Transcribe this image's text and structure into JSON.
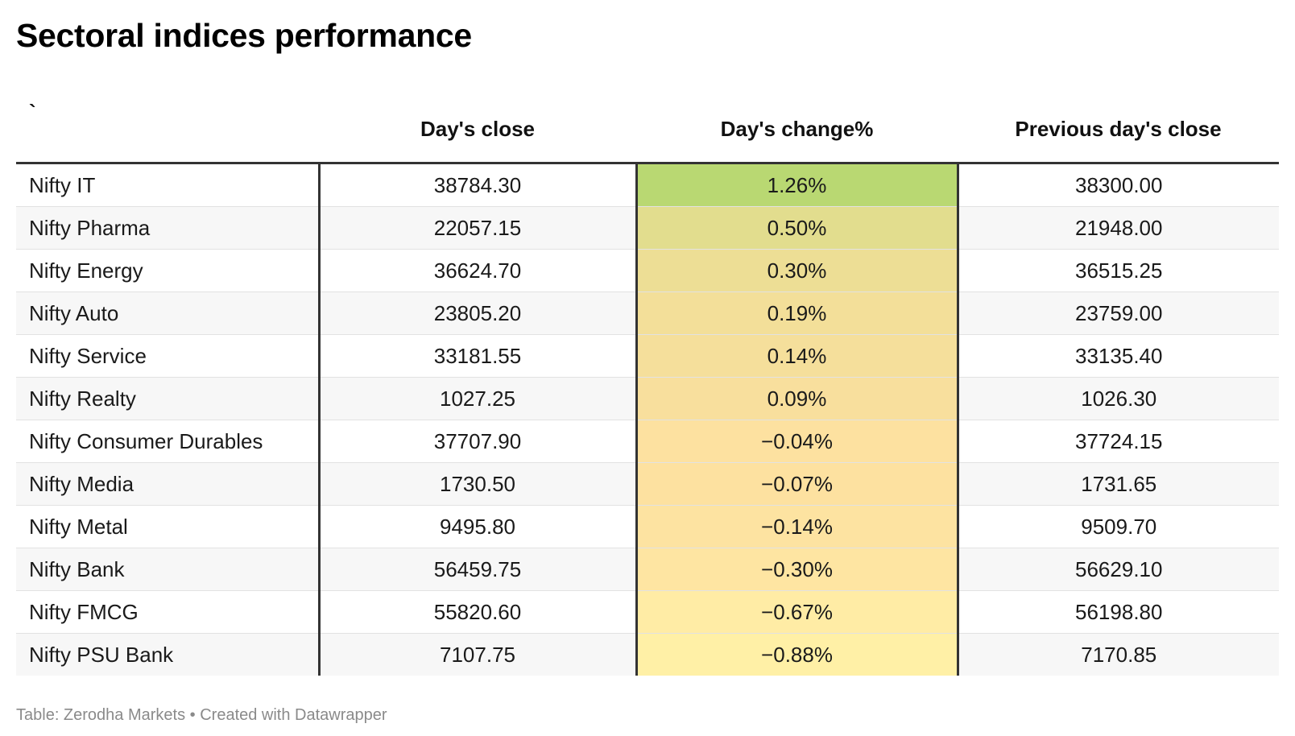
{
  "title": "Sectoral indices performance",
  "footer": "Table: Zerodha Markets • Created with Datawrapper",
  "chart_data": {
    "type": "table",
    "title": "Sectoral indices performance",
    "columns": [
      "`",
      "Day's close",
      "Day's change%",
      "Previous day's close"
    ],
    "rows": [
      {
        "name": "Nifty IT",
        "close": "38784.30",
        "change": "1.26%",
        "change_value": 1.26,
        "prev": "38300.00"
      },
      {
        "name": "Nifty Pharma",
        "close": "22057.15",
        "change": "0.50%",
        "change_value": 0.5,
        "prev": "21948.00"
      },
      {
        "name": "Nifty Energy",
        "close": "36624.70",
        "change": "0.30%",
        "change_value": 0.3,
        "prev": "36515.25"
      },
      {
        "name": "Nifty Auto",
        "close": "23805.20",
        "change": "0.19%",
        "change_value": 0.19,
        "prev": "23759.00"
      },
      {
        "name": "Nifty Service",
        "close": "33181.55",
        "change": "0.14%",
        "change_value": 0.14,
        "prev": "33135.40"
      },
      {
        "name": "Nifty Realty",
        "close": "1027.25",
        "change": "0.09%",
        "change_value": 0.09,
        "prev": "1026.30"
      },
      {
        "name": "Nifty Consumer Durables",
        "close": "37707.90",
        "change": "−0.04%",
        "change_value": -0.04,
        "prev": "37724.15"
      },
      {
        "name": "Nifty Media",
        "close": "1730.50",
        "change": "−0.07%",
        "change_value": -0.07,
        "prev": "1731.65"
      },
      {
        "name": "Nifty Metal",
        "close": "9495.80",
        "change": "−0.14%",
        "change_value": -0.14,
        "prev": "9509.70"
      },
      {
        "name": "Nifty Bank",
        "close": "56459.75",
        "change": "−0.30%",
        "change_value": -0.3,
        "prev": "56629.10"
      },
      {
        "name": "Nifty FMCG",
        "close": "55820.60",
        "change": "−0.67%",
        "change_value": -0.67,
        "prev": "56198.80"
      },
      {
        "name": "Nifty PSU Bank",
        "close": "7107.75",
        "change": "−0.88%",
        "change_value": -0.88,
        "prev": "7170.85"
      }
    ],
    "heatmap_colors": {
      "high": "#b9d872",
      "mid": "#fde0a0",
      "low": "#fff0a6"
    }
  }
}
